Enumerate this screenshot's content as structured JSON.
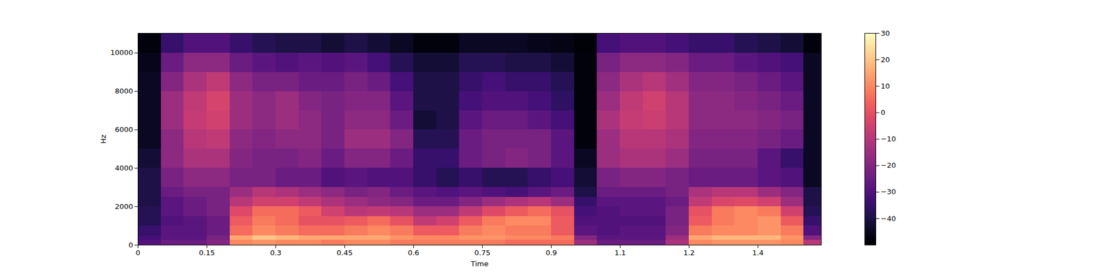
{
  "chart_data": {
    "type": "heatmap",
    "x_label": "Time",
    "y_label": "Hz",
    "color": "magma",
    "xlim": [
      0,
      1.488
    ],
    "ylim": [
      0,
      11025
    ],
    "xticks": [
      0,
      0.15,
      0.3,
      0.45,
      0.6,
      0.75,
      0.9,
      {
        "value": 1.05,
        "label": "1.1"
      },
      1.2,
      {
        "value": 1.35,
        "label": "1.4"
      }
    ],
    "yticks": [
      0,
      2000,
      4000,
      6000,
      8000,
      10000
    ],
    "colorbar": {
      "range": [
        -50,
        30
      ],
      "ticks": [
        -40,
        -30,
        -20,
        -10,
        0,
        10,
        20,
        30
      ]
    },
    "time_edges": [
      0,
      0.05,
      0.1,
      0.15,
      0.2,
      0.25,
      0.3,
      0.35,
      0.4,
      0.45,
      0.5,
      0.55,
      0.6,
      0.65,
      0.7,
      0.75,
      0.8,
      0.85,
      0.9,
      0.95,
      1.0,
      1.05,
      1.1,
      1.15,
      1.2,
      1.25,
      1.3,
      1.35,
      1.4,
      1.45,
      1.5
    ],
    "frequency_edges": [
      0,
      250,
      500,
      1000,
      1500,
      2000,
      2500,
      3000,
      4000,
      5000,
      6000,
      7000,
      8000,
      9000,
      10000,
      11025
    ],
    "values": [
      [
        -30,
        -25,
        -25,
        -20,
        10,
        12,
        10,
        10,
        8,
        10,
        10,
        8,
        8,
        8,
        8,
        8,
        5,
        5,
        5,
        -15,
        -25,
        -25,
        -25,
        -12,
        10,
        12,
        12,
        12,
        10,
        -10
      ],
      [
        -32,
        -28,
        -28,
        -22,
        15,
        20,
        18,
        15,
        15,
        15,
        15,
        12,
        10,
        10,
        12,
        12,
        10,
        10,
        8,
        -20,
        -28,
        -28,
        -28,
        -15,
        15,
        18,
        18,
        18,
        12,
        -20
      ],
      [
        -35,
        -28,
        -28,
        -25,
        5,
        10,
        8,
        5,
        5,
        8,
        10,
        8,
        2,
        2,
        8,
        10,
        8,
        8,
        2,
        -28,
        -30,
        -28,
        -28,
        -20,
        8,
        10,
        10,
        12,
        8,
        -30
      ],
      [
        -38,
        -30,
        -28,
        -25,
        2,
        8,
        5,
        0,
        0,
        2,
        5,
        0,
        -8,
        -5,
        2,
        8,
        10,
        10,
        2,
        -30,
        -30,
        -30,
        -30,
        -22,
        2,
        8,
        10,
        12,
        2,
        -35
      ],
      [
        -38,
        -28,
        -25,
        -22,
        -2,
        5,
        5,
        2,
        -5,
        -10,
        -8,
        -10,
        -15,
        -15,
        -8,
        -2,
        2,
        5,
        0,
        -32,
        -30,
        -28,
        -28,
        -22,
        0,
        8,
        10,
        8,
        -5,
        -38
      ],
      [
        -40,
        -28,
        -25,
        -22,
        -10,
        -5,
        -5,
        -8,
        -12,
        -15,
        -18,
        -20,
        -25,
        -25,
        -20,
        -15,
        -12,
        -10,
        -15,
        -35,
        -28,
        -28,
        -28,
        -25,
        -8,
        -3,
        -2,
        -5,
        -15,
        -40
      ],
      [
        -40,
        -25,
        -22,
        -22,
        -15,
        -10,
        -12,
        -15,
        -18,
        -22,
        -20,
        -25,
        -28,
        -30,
        -28,
        -30,
        -32,
        -28,
        -25,
        -40,
        -25,
        -25,
        -25,
        -22,
        -12,
        -10,
        -10,
        -15,
        -20,
        -40
      ],
      [
        -40,
        -22,
        -18,
        -18,
        -22,
        -22,
        -25,
        -25,
        -30,
        -28,
        -30,
        -30,
        -35,
        -38,
        -35,
        -38,
        -38,
        -35,
        -32,
        -42,
        -22,
        -20,
        -20,
        -22,
        -25,
        -25,
        -25,
        -28,
        -30,
        -45
      ],
      [
        -42,
        -18,
        -12,
        -12,
        -20,
        -22,
        -22,
        -20,
        -25,
        -20,
        -20,
        -25,
        -35,
        -35,
        -25,
        -22,
        -20,
        -22,
        -28,
        -45,
        -15,
        -12,
        -12,
        -15,
        -22,
        -22,
        -22,
        -28,
        -35,
        -45
      ],
      [
        -45,
        -18,
        -10,
        -8,
        -18,
        -20,
        -18,
        -18,
        -22,
        -15,
        -15,
        -20,
        -38,
        -38,
        -25,
        -22,
        -22,
        -22,
        -28,
        -48,
        -15,
        -10,
        -10,
        -12,
        -20,
        -20,
        -20,
        -22,
        -25,
        -45
      ],
      [
        -45,
        -15,
        -7,
        -5,
        -15,
        -18,
        -15,
        -18,
        -22,
        -18,
        -18,
        -25,
        -42,
        -40,
        -28,
        -25,
        -25,
        -28,
        -32,
        -48,
        -12,
        -7,
        -6,
        -10,
        -18,
        -18,
        -18,
        -20,
        -22,
        -45
      ],
      [
        -45,
        -15,
        -8,
        -4,
        -15,
        -18,
        -15,
        -20,
        -22,
        -20,
        -20,
        -28,
        -40,
        -40,
        -32,
        -30,
        -30,
        -32,
        -36,
        -48,
        -15,
        -8,
        -5,
        -10,
        -18,
        -18,
        -20,
        -22,
        -25,
        -45
      ],
      [
        -45,
        -20,
        -12,
        -8,
        -18,
        -22,
        -22,
        -25,
        -25,
        -22,
        -25,
        -32,
        -40,
        -40,
        -35,
        -32,
        -35,
        -35,
        -38,
        -48,
        -18,
        -12,
        -10,
        -14,
        -20,
        -20,
        -22,
        -25,
        -28,
        -45
      ],
      [
        -46,
        -25,
        -18,
        -18,
        -25,
        -28,
        -30,
        -28,
        -30,
        -28,
        -32,
        -38,
        -42,
        -42,
        -38,
        -38,
        -40,
        -40,
        -42,
        -48,
        -22,
        -18,
        -18,
        -20,
        -25,
        -25,
        -28,
        -30,
        -32,
        -45
      ],
      [
        -48,
        -35,
        -30,
        -30,
        -35,
        -38,
        -40,
        -40,
        -42,
        -40,
        -42,
        -45,
        -48,
        -48,
        -45,
        -45,
        -45,
        -46,
        -47,
        -49,
        -32,
        -30,
        -30,
        -32,
        -35,
        -35,
        -38,
        -40,
        -42,
        -48
      ]
    ]
  }
}
